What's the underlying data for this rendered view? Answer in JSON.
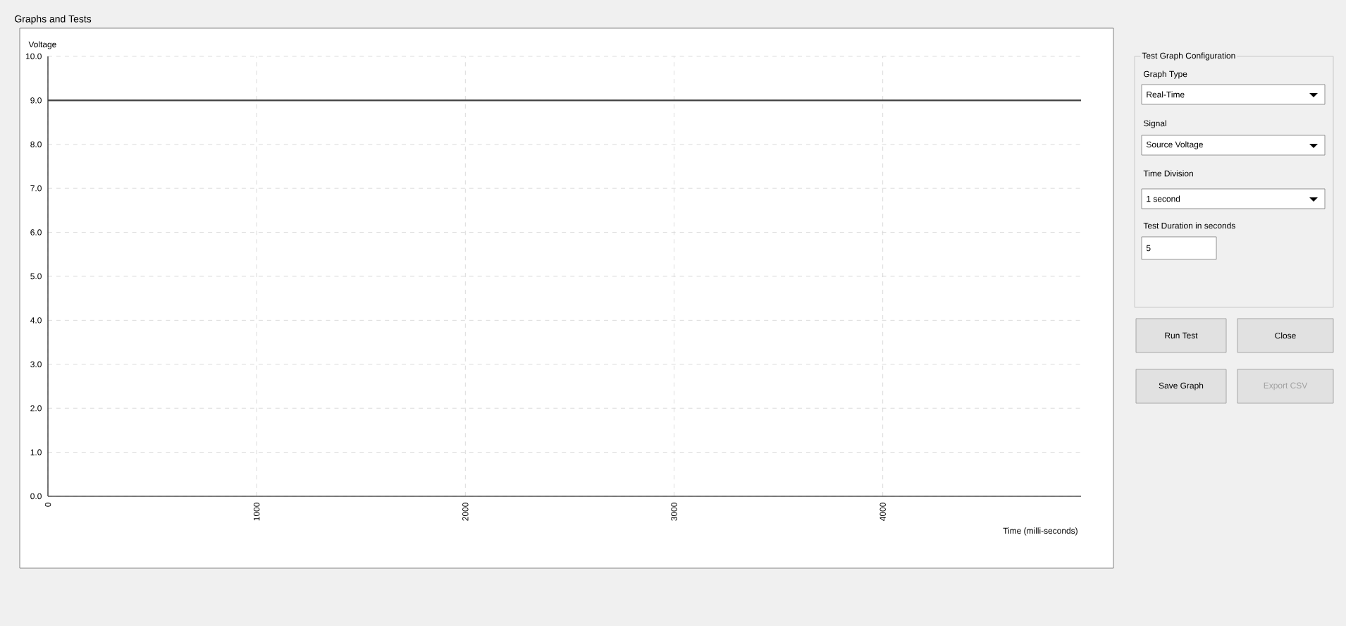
{
  "chart_data": [
    {
      "type": "line",
      "title": "Graphs and Tests",
      "xlabel": "Time (milli-seconds)",
      "ylabel": "Voltage",
      "x": [
        0,
        4950
      ],
      "series": [
        {
          "color": "#404040",
          "values": [
            9.0,
            9.0
          ]
        }
      ],
      "xlim": [
        0,
        4950
      ],
      "ylim": [
        0,
        10
      ],
      "xticks": [
        0,
        1000,
        2000,
        3000,
        4000
      ],
      "yticks": [
        {
          "value": 0,
          "label": "0.0"
        },
        {
          "value": 1,
          "label": "1.0"
        },
        {
          "value": 2,
          "label": "2.0"
        },
        {
          "value": 3,
          "label": "3.0"
        },
        {
          "value": 4,
          "label": "4.0"
        },
        {
          "value": 5,
          "label": "5.0"
        },
        {
          "value": 6,
          "label": "6.0"
        },
        {
          "value": 7,
          "label": "7.0"
        },
        {
          "value": 8,
          "label": "8.0"
        },
        {
          "value": 9,
          "label": "9.0"
        },
        {
          "value": 10,
          "label": "10.0"
        }
      ],
      "grid": true,
      "marker": "none",
      "line_style": "solid"
    },
    {
      "type": "other",
      "title": "Test Graph Configuration",
      "annotations": [
        "Graph Type",
        "Real-Time",
        "Signal",
        "Source Voltage",
        "Time Division",
        "1 second",
        "Test Duration in seconds",
        "5",
        "Run Test",
        "Close",
        "Save Graph",
        "Export CSV"
      ]
    }
  ]
}
